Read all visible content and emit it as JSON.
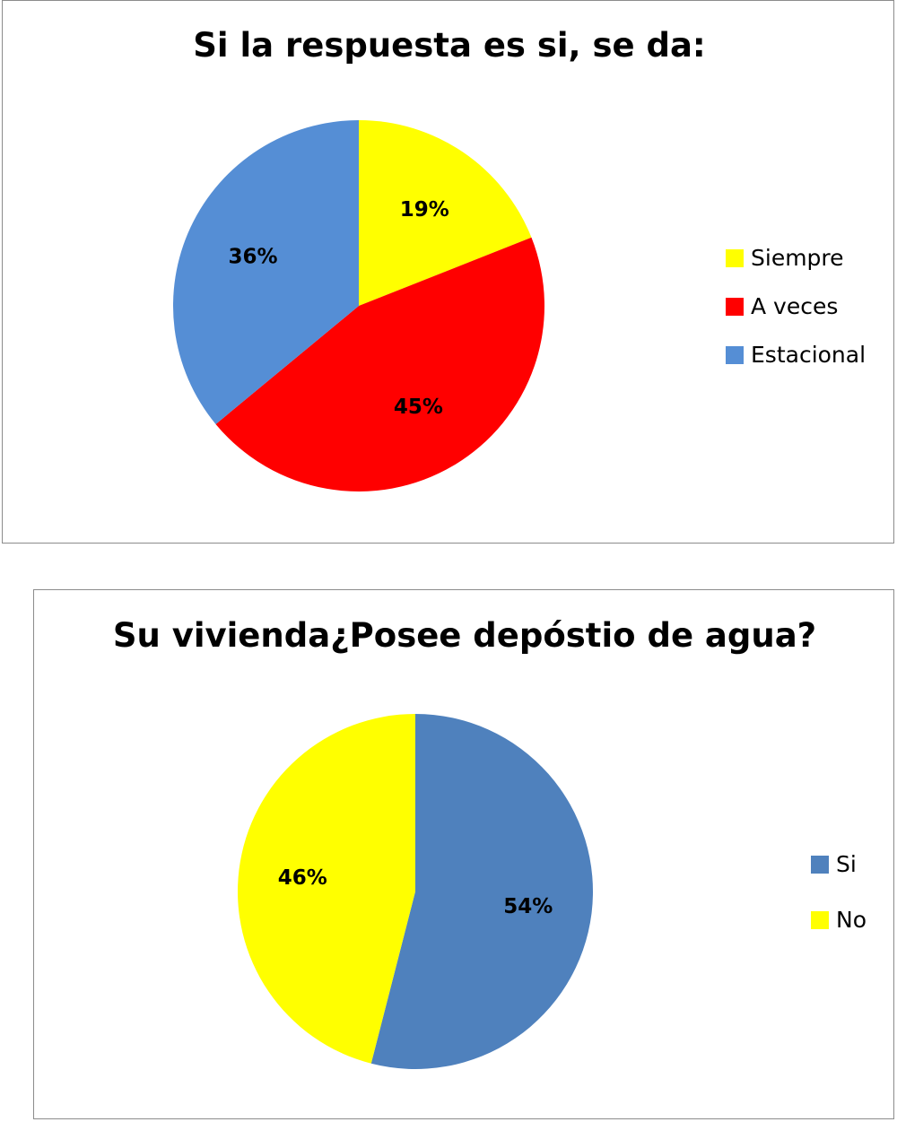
{
  "chart_data": [
    {
      "type": "pie",
      "title": "Si la respuesta es si, se da:",
      "slices": [
        {
          "label": "Siempre",
          "value": 19,
          "display": "19%",
          "color": "#FFFF00"
        },
        {
          "label": "A veces",
          "value": 45,
          "display": "45%",
          "color": "#FF0000"
        },
        {
          "label": "Estacional",
          "value": 36,
          "display": "36%",
          "color": "#558ED5"
        }
      ],
      "legend_position": "right"
    },
    {
      "type": "pie",
      "title": "Su vivienda¿Posee depóstio de agua?",
      "slices": [
        {
          "label": "Si",
          "value": 54,
          "display": "54%",
          "color": "#4F81BD"
        },
        {
          "label": "No",
          "value": 46,
          "display": "46%",
          "color": "#FFFF00"
        }
      ],
      "legend_position": "right"
    }
  ]
}
